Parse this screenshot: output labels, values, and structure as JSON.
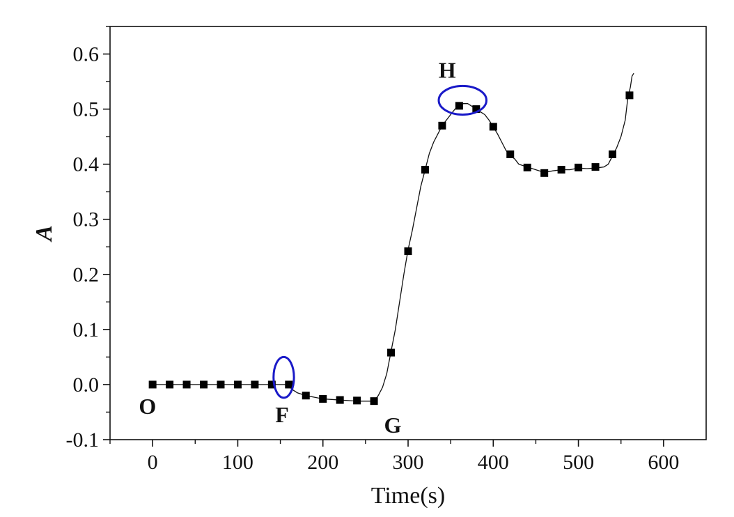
{
  "chart_data": {
    "type": "line",
    "title": "",
    "xlabel": "Time(s)",
    "ylabel": "A",
    "xlim": [
      -50,
      650
    ],
    "ylim": [
      -0.1,
      0.65
    ],
    "x_ticks": [
      0,
      100,
      200,
      300,
      400,
      500,
      600
    ],
    "x_tick_labels": [
      "0",
      "100",
      "200",
      "300",
      "400",
      "500",
      "600"
    ],
    "y_ticks": [
      -0.1,
      0.0,
      0.1,
      0.2,
      0.3,
      0.4,
      0.5,
      0.6
    ],
    "y_tick_labels": [
      "-0.1",
      "0.0",
      "0.1",
      "0.2",
      "0.3",
      "0.4",
      "0.5",
      "0.6"
    ],
    "grid": false,
    "legend": "none",
    "line_color": "#111111",
    "marker_color": "#000000",
    "highlight_color": "#1a1ac8",
    "line": {
      "x": [
        0,
        20,
        40,
        60,
        80,
        100,
        120,
        140,
        150,
        155,
        160,
        165,
        170,
        180,
        190,
        200,
        210,
        220,
        230,
        240,
        250,
        260,
        265,
        270,
        275,
        280,
        285,
        290,
        295,
        300,
        305,
        310,
        315,
        320,
        325,
        330,
        335,
        340,
        345,
        350,
        355,
        360,
        365,
        370,
        375,
        380,
        385,
        390,
        395,
        400,
        405,
        410,
        415,
        420,
        425,
        430,
        440,
        450,
        460,
        470,
        480,
        490,
        500,
        510,
        520,
        530,
        535,
        540,
        545,
        550,
        555,
        558,
        561,
        563,
        565
      ],
      "y": [
        0.0,
        0.0,
        0.0,
        0.0,
        0.0,
        0.0,
        0.0,
        0.0,
        0.0,
        0.0,
        -0.003,
        -0.01,
        -0.015,
        -0.02,
        -0.023,
        -0.026,
        -0.027,
        -0.028,
        -0.029,
        -0.03,
        -0.03,
        -0.03,
        -0.02,
        -0.005,
        0.02,
        0.06,
        0.1,
        0.15,
        0.2,
        0.245,
        0.28,
        0.32,
        0.36,
        0.39,
        0.42,
        0.44,
        0.455,
        0.47,
        0.48,
        0.49,
        0.5,
        0.506,
        0.51,
        0.51,
        0.505,
        0.5,
        0.495,
        0.49,
        0.48,
        0.468,
        0.455,
        0.44,
        0.425,
        0.415,
        0.41,
        0.4,
        0.395,
        0.39,
        0.385,
        0.388,
        0.39,
        0.39,
        0.393,
        0.392,
        0.393,
        0.395,
        0.4,
        0.415,
        0.43,
        0.45,
        0.48,
        0.52,
        0.54,
        0.56,
        0.565
      ]
    },
    "markers": {
      "x": [
        0,
        20,
        40,
        60,
        80,
        100,
        120,
        140,
        160,
        180,
        200,
        220,
        240,
        260,
        280,
        300,
        320,
        340,
        360,
        380,
        400,
        420,
        440,
        460,
        480,
        500,
        520,
        540,
        560
      ],
      "y": [
        0.0,
        0.0,
        0.0,
        0.0,
        0.0,
        0.0,
        0.0,
        0.0,
        0.0,
        -0.02,
        -0.026,
        -0.028,
        -0.029,
        -0.03,
        0.058,
        0.242,
        0.39,
        0.47,
        0.506,
        0.5,
        0.468,
        0.418,
        0.394,
        0.384,
        0.39,
        0.394,
        0.395,
        0.418,
        0.525
      ]
    },
    "annotations": [
      {
        "label": "O",
        "x": -6,
        "y": -0.038
      },
      {
        "label": "F",
        "x": 152,
        "y": -0.053
      },
      {
        "label": "G",
        "x": 282,
        "y": -0.072
      },
      {
        "label": "H",
        "x": 346,
        "y": 0.572
      }
    ],
    "highlights": [
      {
        "cx": 154,
        "cy": 0.013,
        "rx": 12,
        "ry": 0.037
      },
      {
        "cx": 364,
        "cy": 0.516,
        "rx": 28,
        "ry": 0.026
      }
    ]
  }
}
